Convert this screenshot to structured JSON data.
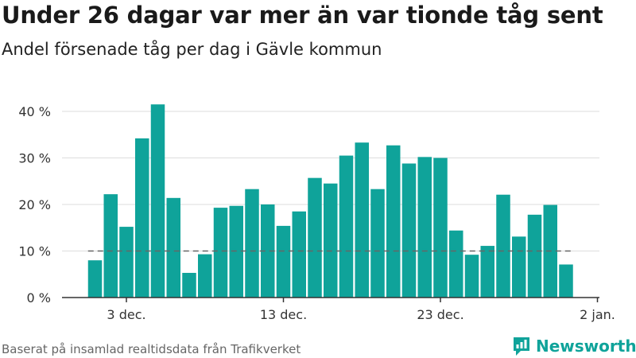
{
  "header": {
    "title": "Under 26 dagar var mer än var tionde tåg sent",
    "subtitle": "Andel försenade tåg per dag i Gävle kommun"
  },
  "footer": {
    "source": "Baserat på insamlad realtidsdata från Trafikverket",
    "brand": "Newsworthy"
  },
  "colors": {
    "bar": "#0fa39a",
    "reference_line": "#666666",
    "grid": "#dddddd",
    "axis": "#333333",
    "brand": "#0fa39a"
  },
  "chart_data": {
    "type": "bar",
    "categories": [
      "1 dec.",
      "2 dec.",
      "3 dec.",
      "4 dec.",
      "5 dec.",
      "6 dec.",
      "7 dec.",
      "8 dec.",
      "9 dec.",
      "10 dec.",
      "11 dec.",
      "12 dec.",
      "13 dec.",
      "14 dec.",
      "15 dec.",
      "16 dec.",
      "17 dec.",
      "18 dec.",
      "19 dec.",
      "20 dec.",
      "21 dec.",
      "22 dec.",
      "23 dec.",
      "24 dec.",
      "25 dec.",
      "26 dec.",
      "27 dec.",
      "28 dec.",
      "29 dec.",
      "30 dec.",
      "31 dec."
    ],
    "values": [
      8,
      22.2,
      15.2,
      34.2,
      41.5,
      21.4,
      5.3,
      9.3,
      19.3,
      19.7,
      23.3,
      20,
      15.4,
      18.5,
      25.7,
      24.5,
      30.5,
      33.3,
      23.3,
      32.7,
      28.8,
      30.2,
      30,
      14.4,
      9.2,
      11.1,
      22.1,
      13.1,
      17.8,
      19.9,
      7.1
    ],
    "reference_value": 10,
    "ylim": [
      0,
      42
    ],
    "yticks": [
      {
        "value": 0,
        "label": "0 %"
      },
      {
        "value": 10,
        "label": "10 %"
      },
      {
        "value": 20,
        "label": "20 %"
      },
      {
        "value": 30,
        "label": "30 %"
      },
      {
        "value": 40,
        "label": "40 %"
      }
    ],
    "xticks": [
      {
        "index": 2,
        "label": "3 dec."
      },
      {
        "index": 12,
        "label": "13 dec."
      },
      {
        "index": 22,
        "label": "23 dec."
      },
      {
        "index": 32,
        "label": "2 jan."
      }
    ],
    "grid": true,
    "xlabel": "",
    "ylabel": ""
  }
}
